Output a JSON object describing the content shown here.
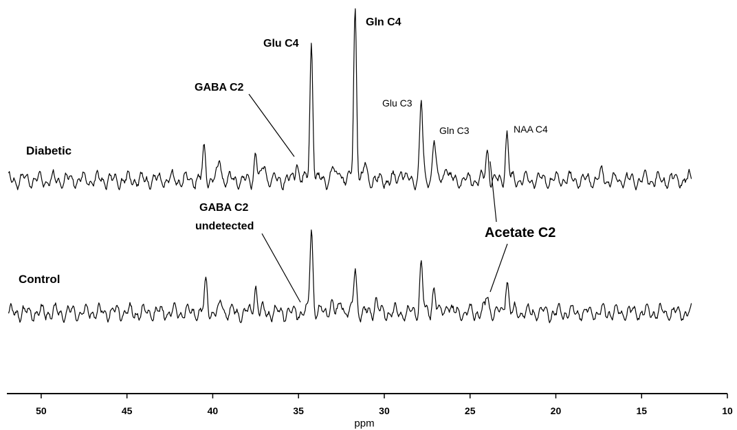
{
  "chart_data": {
    "type": "line",
    "xlabel": "ppm",
    "xlim": [
      52,
      10
    ],
    "x_reversed": true,
    "x_ticks": [
      50,
      45,
      40,
      35,
      30,
      25,
      20,
      15,
      10
    ],
    "y_ticks_shown": false,
    "grid": false,
    "series": [
      {
        "name": "Diabetic",
        "peaks": [
          {
            "ppm": 40.5,
            "height": 0.22
          },
          {
            "ppm": 39.6,
            "height": 0.16
          },
          {
            "ppm": 37.5,
            "height": 0.2
          },
          {
            "ppm": 37.0,
            "height": 0.13
          },
          {
            "ppm": 35.1,
            "height": 0.14
          },
          {
            "ppm": 34.25,
            "height": 1.0
          },
          {
            "ppm": 33.0,
            "height": 0.1
          },
          {
            "ppm": 32.6,
            "height": 0.1
          },
          {
            "ppm": 31.7,
            "height": 1.26
          },
          {
            "ppm": 31.1,
            "height": 0.12
          },
          {
            "ppm": 29.0,
            "height": 0.1
          },
          {
            "ppm": 27.85,
            "height": 0.58
          },
          {
            "ppm": 27.1,
            "height": 0.3
          },
          {
            "ppm": 26.4,
            "height": 0.13
          },
          {
            "ppm": 24.0,
            "height": 0.22
          },
          {
            "ppm": 22.85,
            "height": 0.33
          },
          {
            "ppm": 17.3,
            "height": 0.06
          }
        ]
      },
      {
        "name": "Control",
        "peaks": [
          {
            "ppm": 40.4,
            "height": 0.22
          },
          {
            "ppm": 39.5,
            "height": 0.08
          },
          {
            "ppm": 37.5,
            "height": 0.2
          },
          {
            "ppm": 34.25,
            "height": 0.62
          },
          {
            "ppm": 33.1,
            "height": 0.1
          },
          {
            "ppm": 32.5,
            "height": 0.1
          },
          {
            "ppm": 31.7,
            "height": 0.33
          },
          {
            "ppm": 30.5,
            "height": 0.1
          },
          {
            "ppm": 27.85,
            "height": 0.37
          },
          {
            "ppm": 27.1,
            "height": 0.2
          },
          {
            "ppm": 26.3,
            "height": 0.09
          },
          {
            "ppm": 24.0,
            "height": 0.13
          },
          {
            "ppm": 22.85,
            "height": 0.26
          }
        ]
      }
    ],
    "annotations": [
      {
        "text": "Gln C4",
        "ppm": 31.7,
        "series": "Diabetic"
      },
      {
        "text": "Glu C4",
        "ppm": 34.25,
        "series": "Diabetic"
      },
      {
        "text": "GABA C2",
        "ppm": 35.3,
        "series": "Diabetic"
      },
      {
        "text": "Glu C3",
        "ppm": 27.85,
        "series": "Diabetic"
      },
      {
        "text": "Gln C3",
        "ppm": 27.1,
        "series": "Diabetic"
      },
      {
        "text": "NAA C4",
        "ppm": 22.85,
        "series": "Diabetic"
      },
      {
        "text": "GABA C2",
        "text2": "undetected",
        "ppm": 35.2,
        "series": "Control"
      },
      {
        "text": "Acetate C2",
        "ppm": 24.0,
        "series": "Both"
      }
    ]
  }
}
